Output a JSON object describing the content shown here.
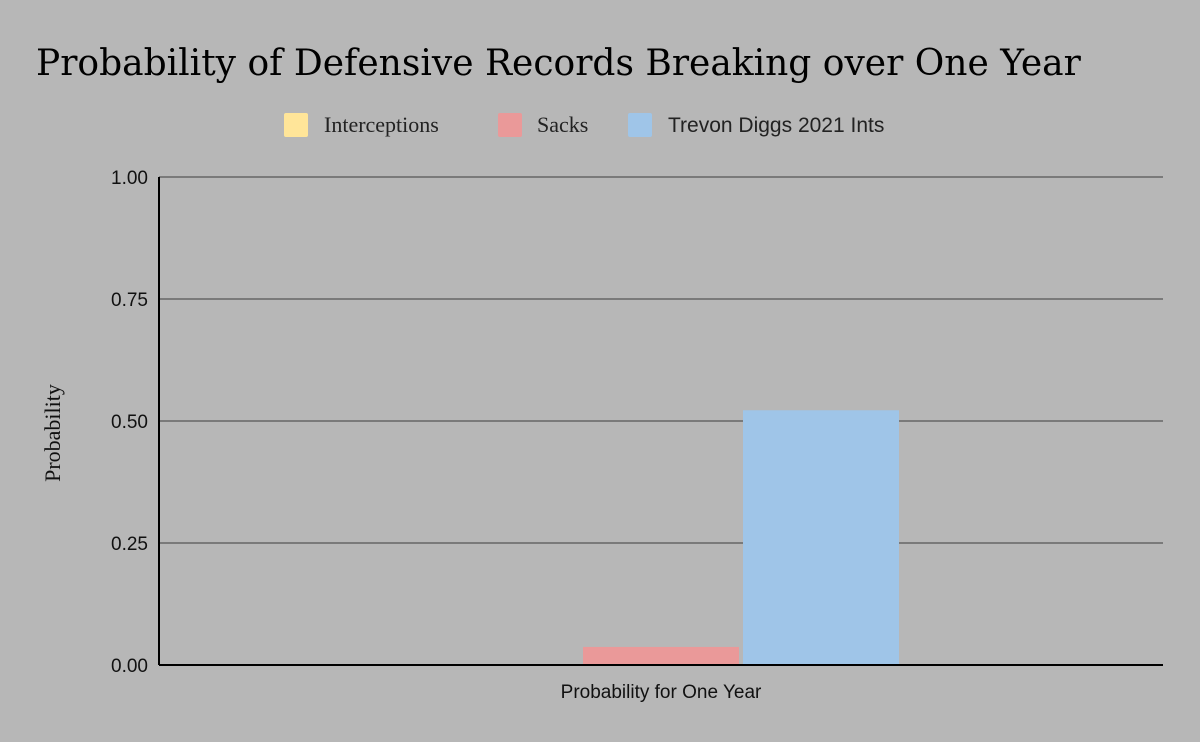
{
  "chart_data": {
    "type": "bar",
    "title": "Probability of Defensive Records Breaking over One Year",
    "xlabel": "",
    "ylabel": "Probability",
    "categories": [
      "Probability for One Year"
    ],
    "series": [
      {
        "name": "Interceptions",
        "values": [
          0.0
        ],
        "color": "#ffe599"
      },
      {
        "name": "Sacks",
        "values": [
          0.037
        ],
        "color": "#ea9999"
      },
      {
        "name": "Trevon Diggs 2021 Ints",
        "values": [
          0.522
        ],
        "color": "#9fc5e8"
      }
    ],
    "ylim": [
      0,
      1
    ],
    "yticks": [
      "0.00",
      "0.25",
      "0.50",
      "0.75",
      "1.00"
    ],
    "grid": true,
    "legend": "top"
  }
}
